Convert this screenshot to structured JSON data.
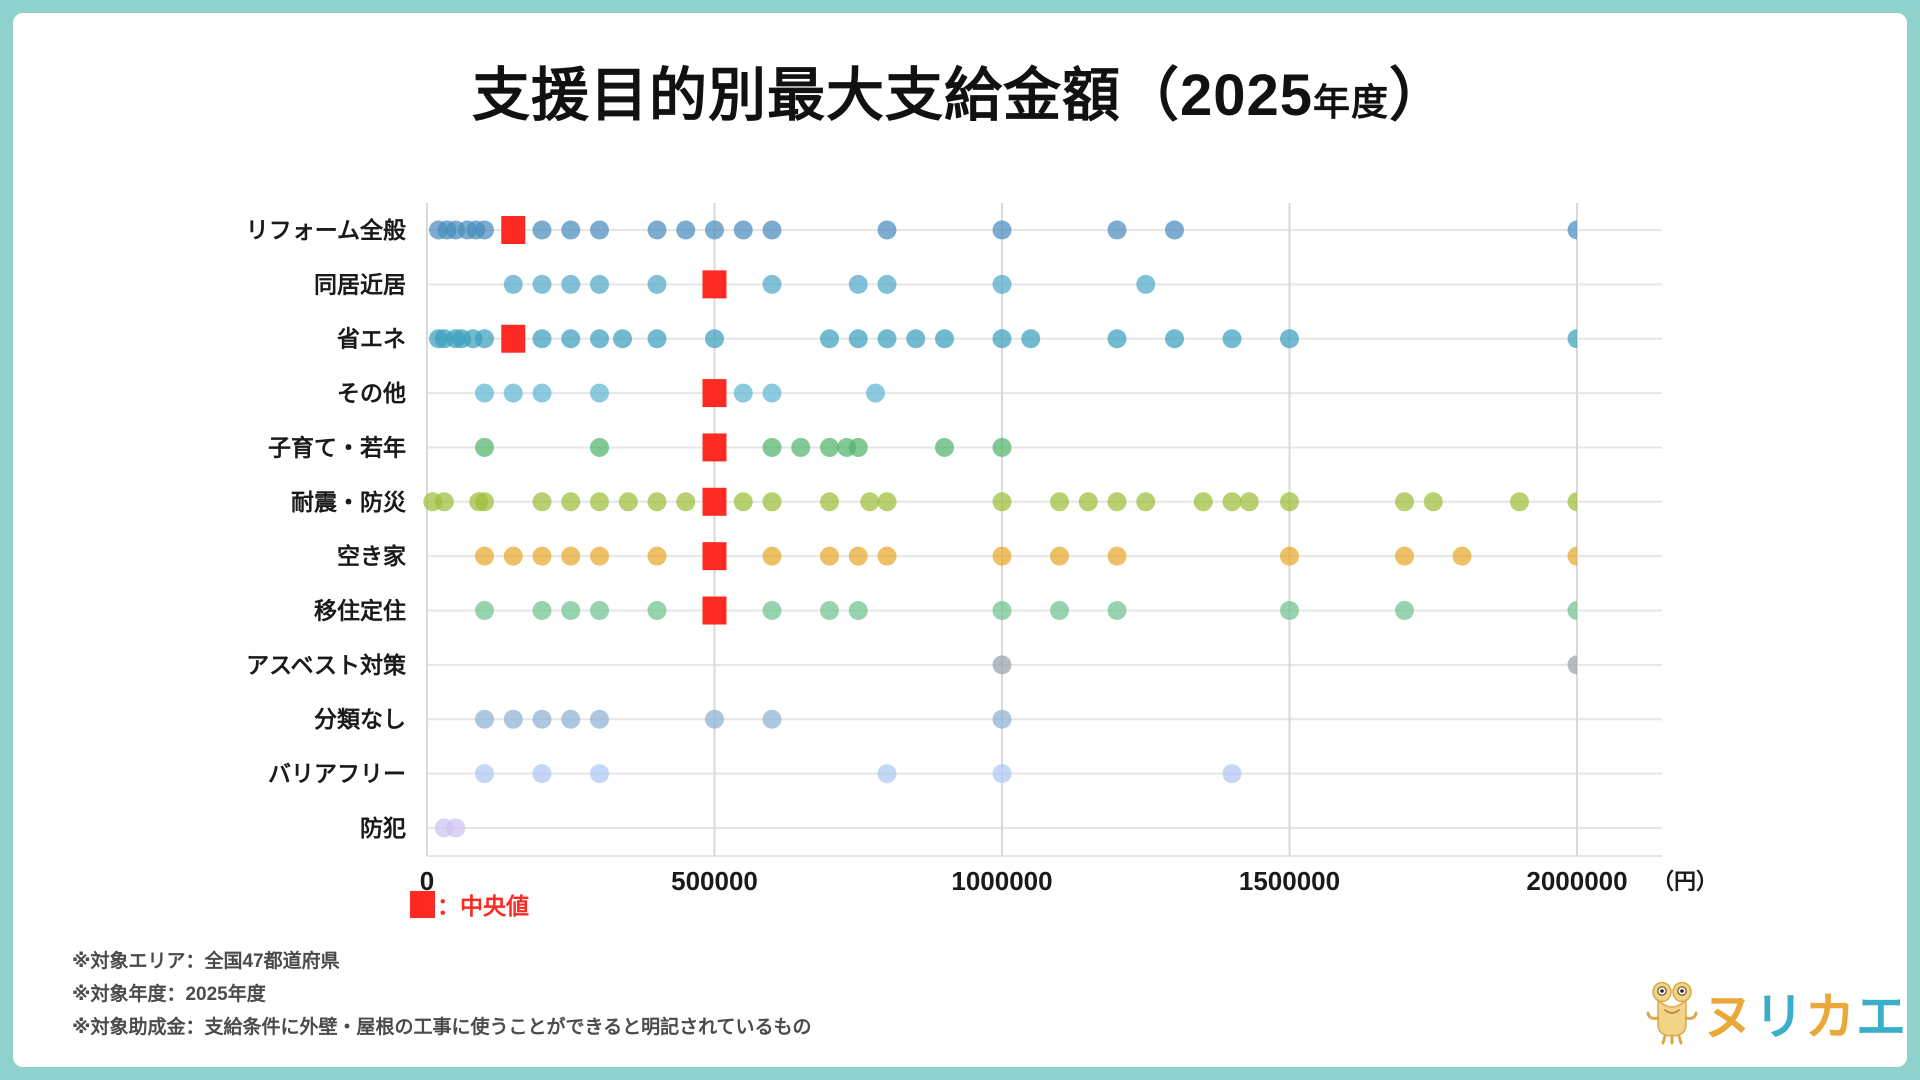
{
  "title": {
    "main": "支援目的別最大支給金額（2025",
    "year_suffix": "年度",
    "close": "）"
  },
  "legend": {
    "median_label": "：中央値",
    "median_color": "#fb2b24"
  },
  "x_axis": {
    "tick_labels": [
      "0",
      "500000",
      "1000000",
      "1500000",
      "2000000"
    ],
    "unit_label": "（円）"
  },
  "notes": [
    "※対象エリア：全国47都道府県",
    "※対象年度：2025年度",
    "※対象助成金：支給条件に外壁・屋根の工事に使うことができると明記されているもの"
  ],
  "logo": {
    "name": "ヌリカエ",
    "letters": [
      {
        "char": "ヌ",
        "color": "#e9a838"
      },
      {
        "char": "リ",
        "color": "#3bafc9"
      },
      {
        "char": "カ",
        "color": "#e9a838"
      },
      {
        "char": "エ",
        "color": "#3bafc9"
      }
    ],
    "mascot": "frog-icon"
  },
  "frame_color": "#8fd1cc",
  "chart_data": {
    "type": "scatter",
    "title": "支援目的別最大支給金額（2025年度）",
    "xlabel": "（円）",
    "x_ticks": [
      0,
      500000,
      1000000,
      1500000,
      2000000
    ],
    "xlim": [
      0,
      2000000
    ],
    "grid": true,
    "legend_position": "bottom-left",
    "median_marker": {
      "shape": "square",
      "color": "#fb2b24",
      "label": "：中央値"
    },
    "rows": [
      {
        "label": "リフォーム全般",
        "color": "#4a8cbe",
        "median": 150000,
        "values": [
          20000,
          35000,
          50000,
          70000,
          85000,
          100000,
          200000,
          250000,
          300000,
          400000,
          450000,
          500000,
          550000,
          600000,
          800000,
          1000000,
          1200000,
          1300000,
          2000000
        ]
      },
      {
        "label": "同居近居",
        "color": "#4fa9c9",
        "median": 500000,
        "values": [
          150000,
          200000,
          250000,
          300000,
          400000,
          600000,
          750000,
          800000,
          1000000,
          1250000
        ]
      },
      {
        "label": "省エネ",
        "color": "#3aa0bd",
        "median": 150000,
        "values": [
          20000,
          30000,
          50000,
          60000,
          80000,
          100000,
          200000,
          250000,
          300000,
          340000,
          400000,
          500000,
          700000,
          750000,
          800000,
          850000,
          900000,
          1000000,
          1050000,
          1200000,
          1300000,
          1400000,
          1500000,
          2000000
        ]
      },
      {
        "label": "その他",
        "color": "#5fb6d2",
        "median": 500000,
        "values": [
          100000,
          150000,
          200000,
          300000,
          500000,
          550000,
          600000,
          780000
        ]
      },
      {
        "label": "子育て・若年",
        "color": "#52b46c",
        "median": 500000,
        "values": [
          100000,
          300000,
          500000,
          600000,
          650000,
          700000,
          730000,
          750000,
          900000,
          1000000
        ]
      },
      {
        "label": "耐震・防災",
        "color": "#9cbe39",
        "median": 500000,
        "values": [
          10000,
          30000,
          90000,
          100000,
          200000,
          250000,
          300000,
          350000,
          400000,
          450000,
          500000,
          550000,
          600000,
          700000,
          770000,
          800000,
          1000000,
          1100000,
          1150000,
          1200000,
          1250000,
          1350000,
          1400000,
          1430000,
          1500000,
          1700000,
          1750000,
          1900000,
          2000000
        ]
      },
      {
        "label": "空き家",
        "color": "#e8a72b",
        "median": 500000,
        "values": [
          100000,
          150000,
          200000,
          250000,
          300000,
          400000,
          500000,
          600000,
          700000,
          750000,
          800000,
          1000000,
          1100000,
          1200000,
          1500000,
          1700000,
          1800000,
          2000000
        ]
      },
      {
        "label": "移住定住",
        "color": "#6fc28f",
        "median": 500000,
        "values": [
          100000,
          200000,
          250000,
          300000,
          400000,
          500000,
          600000,
          700000,
          750000,
          1000000,
          1100000,
          1200000,
          1500000,
          1700000,
          2000000
        ]
      },
      {
        "label": "アスベスト対策",
        "color": "#9aa4ab",
        "median": null,
        "values": [
          1000000,
          2000000
        ]
      },
      {
        "label": "分類なし",
        "color": "#8fb2d6",
        "median": null,
        "values": [
          100000,
          150000,
          200000,
          250000,
          300000,
          500000,
          600000,
          1000000
        ]
      },
      {
        "label": "バリアフリー",
        "color": "#aec6f2",
        "median": null,
        "values": [
          100000,
          200000,
          300000,
          800000,
          1000000,
          1400000
        ]
      },
      {
        "label": "防犯",
        "color": "#cfc4f2",
        "median": null,
        "values": [
          30000,
          50000
        ]
      }
    ]
  }
}
